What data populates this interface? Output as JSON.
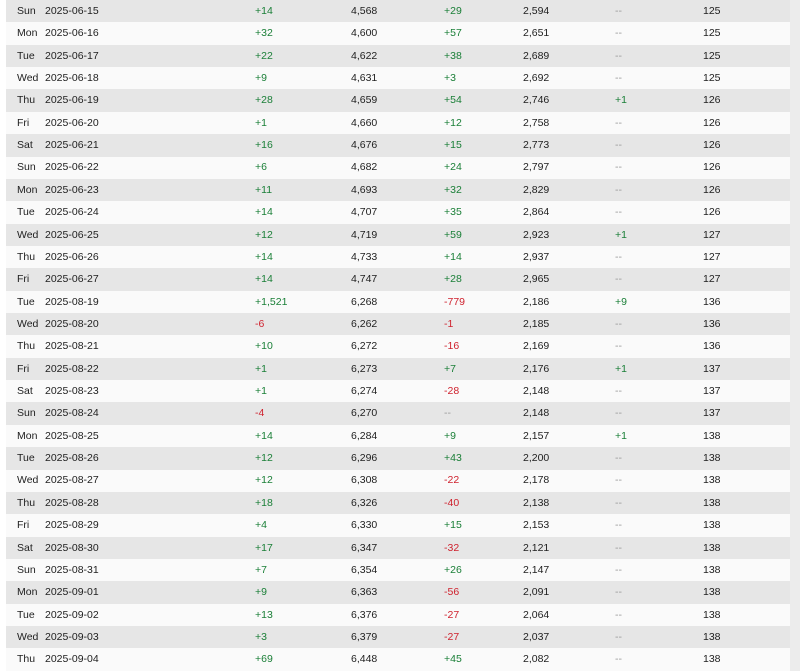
{
  "colors": {
    "positive": "#1a7f37",
    "negative": "#cf222e",
    "neutral": "#999999",
    "text": "#1e1e1e",
    "row_odd_bg": "#e6e6e6",
    "row_even_bg": "#fafafa",
    "right_rail_bg": "#ececec"
  },
  "table": {
    "rows": [
      {
        "day": "Sun",
        "date": "2025-06-15",
        "change_1": "+14",
        "value_1": "4,568",
        "change_2": "+29",
        "value_2": "2,594",
        "change_3": "--",
        "value_3": "125"
      },
      {
        "day": "Mon",
        "date": "2025-06-16",
        "change_1": "+32",
        "value_1": "4,600",
        "change_2": "+57",
        "value_2": "2,651",
        "change_3": "--",
        "value_3": "125"
      },
      {
        "day": "Tue",
        "date": "2025-06-17",
        "change_1": "+22",
        "value_1": "4,622",
        "change_2": "+38",
        "value_2": "2,689",
        "change_3": "--",
        "value_3": "125"
      },
      {
        "day": "Wed",
        "date": "2025-06-18",
        "change_1": "+9",
        "value_1": "4,631",
        "change_2": "+3",
        "value_2": "2,692",
        "change_3": "--",
        "value_3": "125"
      },
      {
        "day": "Thu",
        "date": "2025-06-19",
        "change_1": "+28",
        "value_1": "4,659",
        "change_2": "+54",
        "value_2": "2,746",
        "change_3": "+1",
        "value_3": "126"
      },
      {
        "day": "Fri",
        "date": "2025-06-20",
        "change_1": "+1",
        "value_1": "4,660",
        "change_2": "+12",
        "value_2": "2,758",
        "change_3": "--",
        "value_3": "126"
      },
      {
        "day": "Sat",
        "date": "2025-06-21",
        "change_1": "+16",
        "value_1": "4,676",
        "change_2": "+15",
        "value_2": "2,773",
        "change_3": "--",
        "value_3": "126"
      },
      {
        "day": "Sun",
        "date": "2025-06-22",
        "change_1": "+6",
        "value_1": "4,682",
        "change_2": "+24",
        "value_2": "2,797",
        "change_3": "--",
        "value_3": "126"
      },
      {
        "day": "Mon",
        "date": "2025-06-23",
        "change_1": "+11",
        "value_1": "4,693",
        "change_2": "+32",
        "value_2": "2,829",
        "change_3": "--",
        "value_3": "126"
      },
      {
        "day": "Tue",
        "date": "2025-06-24",
        "change_1": "+14",
        "value_1": "4,707",
        "change_2": "+35",
        "value_2": "2,864",
        "change_3": "--",
        "value_3": "126"
      },
      {
        "day": "Wed",
        "date": "2025-06-25",
        "change_1": "+12",
        "value_1": "4,719",
        "change_2": "+59",
        "value_2": "2,923",
        "change_3": "+1",
        "value_3": "127"
      },
      {
        "day": "Thu",
        "date": "2025-06-26",
        "change_1": "+14",
        "value_1": "4,733",
        "change_2": "+14",
        "value_2": "2,937",
        "change_3": "--",
        "value_3": "127"
      },
      {
        "day": "Fri",
        "date": "2025-06-27",
        "change_1": "+14",
        "value_1": "4,747",
        "change_2": "+28",
        "value_2": "2,965",
        "change_3": "--",
        "value_3": "127"
      },
      {
        "day": "Tue",
        "date": "2025-08-19",
        "change_1": "+1,521",
        "value_1": "6,268",
        "change_2": "-779",
        "value_2": "2,186",
        "change_3": "+9",
        "value_3": "136"
      },
      {
        "day": "Wed",
        "date": "2025-08-20",
        "change_1": "-6",
        "value_1": "6,262",
        "change_2": "-1",
        "value_2": "2,185",
        "change_3": "--",
        "value_3": "136"
      },
      {
        "day": "Thu",
        "date": "2025-08-21",
        "change_1": "+10",
        "value_1": "6,272",
        "change_2": "-16",
        "value_2": "2,169",
        "change_3": "--",
        "value_3": "136"
      },
      {
        "day": "Fri",
        "date": "2025-08-22",
        "change_1": "+1",
        "value_1": "6,273",
        "change_2": "+7",
        "value_2": "2,176",
        "change_3": "+1",
        "value_3": "137"
      },
      {
        "day": "Sat",
        "date": "2025-08-23",
        "change_1": "+1",
        "value_1": "6,274",
        "change_2": "-28",
        "value_2": "2,148",
        "change_3": "--",
        "value_3": "137"
      },
      {
        "day": "Sun",
        "date": "2025-08-24",
        "change_1": "-4",
        "value_1": "6,270",
        "change_2": "--",
        "value_2": "2,148",
        "change_3": "--",
        "value_3": "137"
      },
      {
        "day": "Mon",
        "date": "2025-08-25",
        "change_1": "+14",
        "value_1": "6,284",
        "change_2": "+9",
        "value_2": "2,157",
        "change_3": "+1",
        "value_3": "138"
      },
      {
        "day": "Tue",
        "date": "2025-08-26",
        "change_1": "+12",
        "value_1": "6,296",
        "change_2": "+43",
        "value_2": "2,200",
        "change_3": "--",
        "value_3": "138"
      },
      {
        "day": "Wed",
        "date": "2025-08-27",
        "change_1": "+12",
        "value_1": "6,308",
        "change_2": "-22",
        "value_2": "2,178",
        "change_3": "--",
        "value_3": "138"
      },
      {
        "day": "Thu",
        "date": "2025-08-28",
        "change_1": "+18",
        "value_1": "6,326",
        "change_2": "-40",
        "value_2": "2,138",
        "change_3": "--",
        "value_3": "138"
      },
      {
        "day": "Fri",
        "date": "2025-08-29",
        "change_1": "+4",
        "value_1": "6,330",
        "change_2": "+15",
        "value_2": "2,153",
        "change_3": "--",
        "value_3": "138"
      },
      {
        "day": "Sat",
        "date": "2025-08-30",
        "change_1": "+17",
        "value_1": "6,347",
        "change_2": "-32",
        "value_2": "2,121",
        "change_3": "--",
        "value_3": "138"
      },
      {
        "day": "Sun",
        "date": "2025-08-31",
        "change_1": "+7",
        "value_1": "6,354",
        "change_2": "+26",
        "value_2": "2,147",
        "change_3": "--",
        "value_3": "138"
      },
      {
        "day": "Mon",
        "date": "2025-09-01",
        "change_1": "+9",
        "value_1": "6,363",
        "change_2": "-56",
        "value_2": "2,091",
        "change_3": "--",
        "value_3": "138"
      },
      {
        "day": "Tue",
        "date": "2025-09-02",
        "change_1": "+13",
        "value_1": "6,376",
        "change_2": "-27",
        "value_2": "2,064",
        "change_3": "--",
        "value_3": "138"
      },
      {
        "day": "Wed",
        "date": "2025-09-03",
        "change_1": "+3",
        "value_1": "6,379",
        "change_2": "-27",
        "value_2": "2,037",
        "change_3": "--",
        "value_3": "138"
      },
      {
        "day": "Thu",
        "date": "2025-09-04",
        "change_1": "+69",
        "value_1": "6,448",
        "change_2": "+45",
        "value_2": "2,082",
        "change_3": "--",
        "value_3": "138"
      }
    ]
  }
}
